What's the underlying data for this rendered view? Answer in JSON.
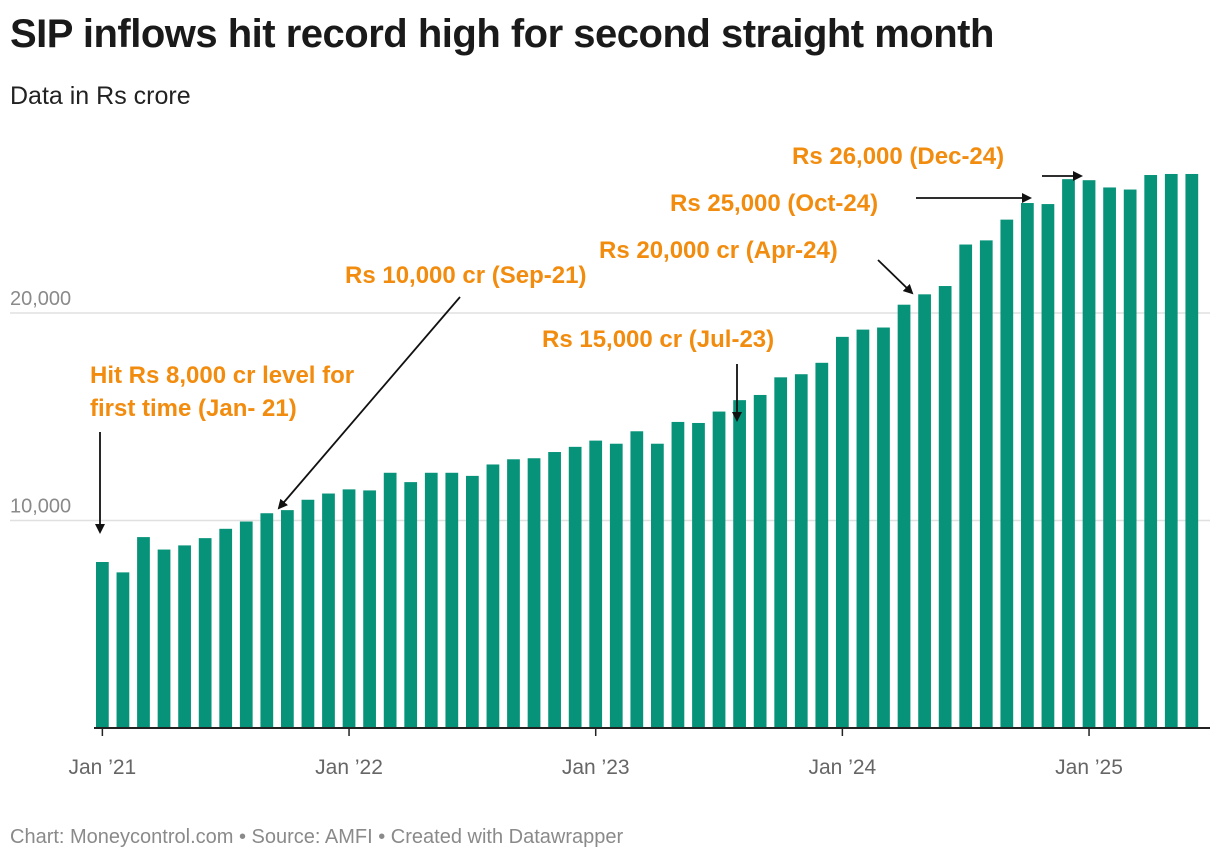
{
  "header": {
    "title": "SIP inflows hit record high for second straight month",
    "subtitle": "Data in Rs crore"
  },
  "footer": {
    "text": "Chart: Moneycontrol.com • Source: AMFI • Created with Datawrapper"
  },
  "colors": {
    "bar": "#07937a",
    "annotation": "#f28c0f",
    "grid": "#e0e0e0",
    "axis": "#222222"
  },
  "chart_data": {
    "type": "bar",
    "categories": [
      "Jan-21",
      "Feb-21",
      "Mar-21",
      "Apr-21",
      "May-21",
      "Jun-21",
      "Jul-21",
      "Aug-21",
      "Sep-21",
      "Oct-21",
      "Nov-21",
      "Dec-21",
      "Jan-22",
      "Feb-22",
      "Mar-22",
      "Apr-22",
      "May-22",
      "Jun-22",
      "Jul-22",
      "Aug-22",
      "Sep-22",
      "Oct-22",
      "Nov-22",
      "Dec-22",
      "Jan-23",
      "Feb-23",
      "Mar-23",
      "Apr-23",
      "May-23",
      "Jun-23",
      "Jul-23",
      "Aug-23",
      "Sep-23",
      "Oct-23",
      "Nov-23",
      "Dec-23",
      "Jan-24",
      "Feb-24",
      "Mar-24",
      "Apr-24",
      "May-24",
      "Jun-24",
      "Jul-24",
      "Aug-24",
      "Sep-24",
      "Oct-24",
      "Nov-24",
      "Dec-24",
      "Jan-25",
      "Feb-25",
      "Mar-25",
      "Apr-25",
      "May-25",
      "Jun-25"
    ],
    "values": [
      8000,
      7500,
      9200,
      8600,
      8800,
      9150,
      9600,
      9950,
      10350,
      10500,
      11000,
      11300,
      11500,
      11450,
      12300,
      11850,
      12300,
      12300,
      12150,
      12700,
      12950,
      13000,
      13300,
      13550,
      13850,
      13700,
      14300,
      13700,
      14750,
      14700,
      15250,
      15800,
      16050,
      16900,
      17050,
      17600,
      18850,
      19200,
      19300,
      20400,
      20900,
      21300,
      23300,
      23500,
      24500,
      25300,
      25250,
      26450,
      26400,
      26050,
      25950,
      26650,
      26700,
      26700
    ],
    "ylim": [
      0,
      28000
    ],
    "yticks": [
      10000,
      20000
    ],
    "ytick_labels": [
      "10,000",
      "20,000"
    ],
    "xticks": [
      {
        "index": 0,
        "label": "Jan ’21"
      },
      {
        "index": 12,
        "label": "Jan ’22"
      },
      {
        "index": 24,
        "label": "Jan ’23"
      },
      {
        "index": 36,
        "label": "Jan ’24"
      },
      {
        "index": 48,
        "label": "Jan ’25"
      }
    ],
    "annotations": [
      {
        "lines": [
          "Hit Rs 8,000 cr level for",
          "first time (Jan- 21)"
        ],
        "index": 0
      },
      {
        "lines": [
          "Rs 10,000 cr (Sep-21)"
        ],
        "index": 8
      },
      {
        "lines": [
          "Rs 15,000 cr (Jul-23)"
        ],
        "index": 30
      },
      {
        "lines": [
          "Rs 20,000 cr (Apr-24)"
        ],
        "index": 39
      },
      {
        "lines": [
          "Rs 25,000 (Oct-24)"
        ],
        "index": 45
      },
      {
        "lines": [
          "Rs 26,000 (Dec-24)"
        ],
        "index": 47
      }
    ],
    "grid": true,
    "xlabel": "",
    "ylabel": ""
  }
}
